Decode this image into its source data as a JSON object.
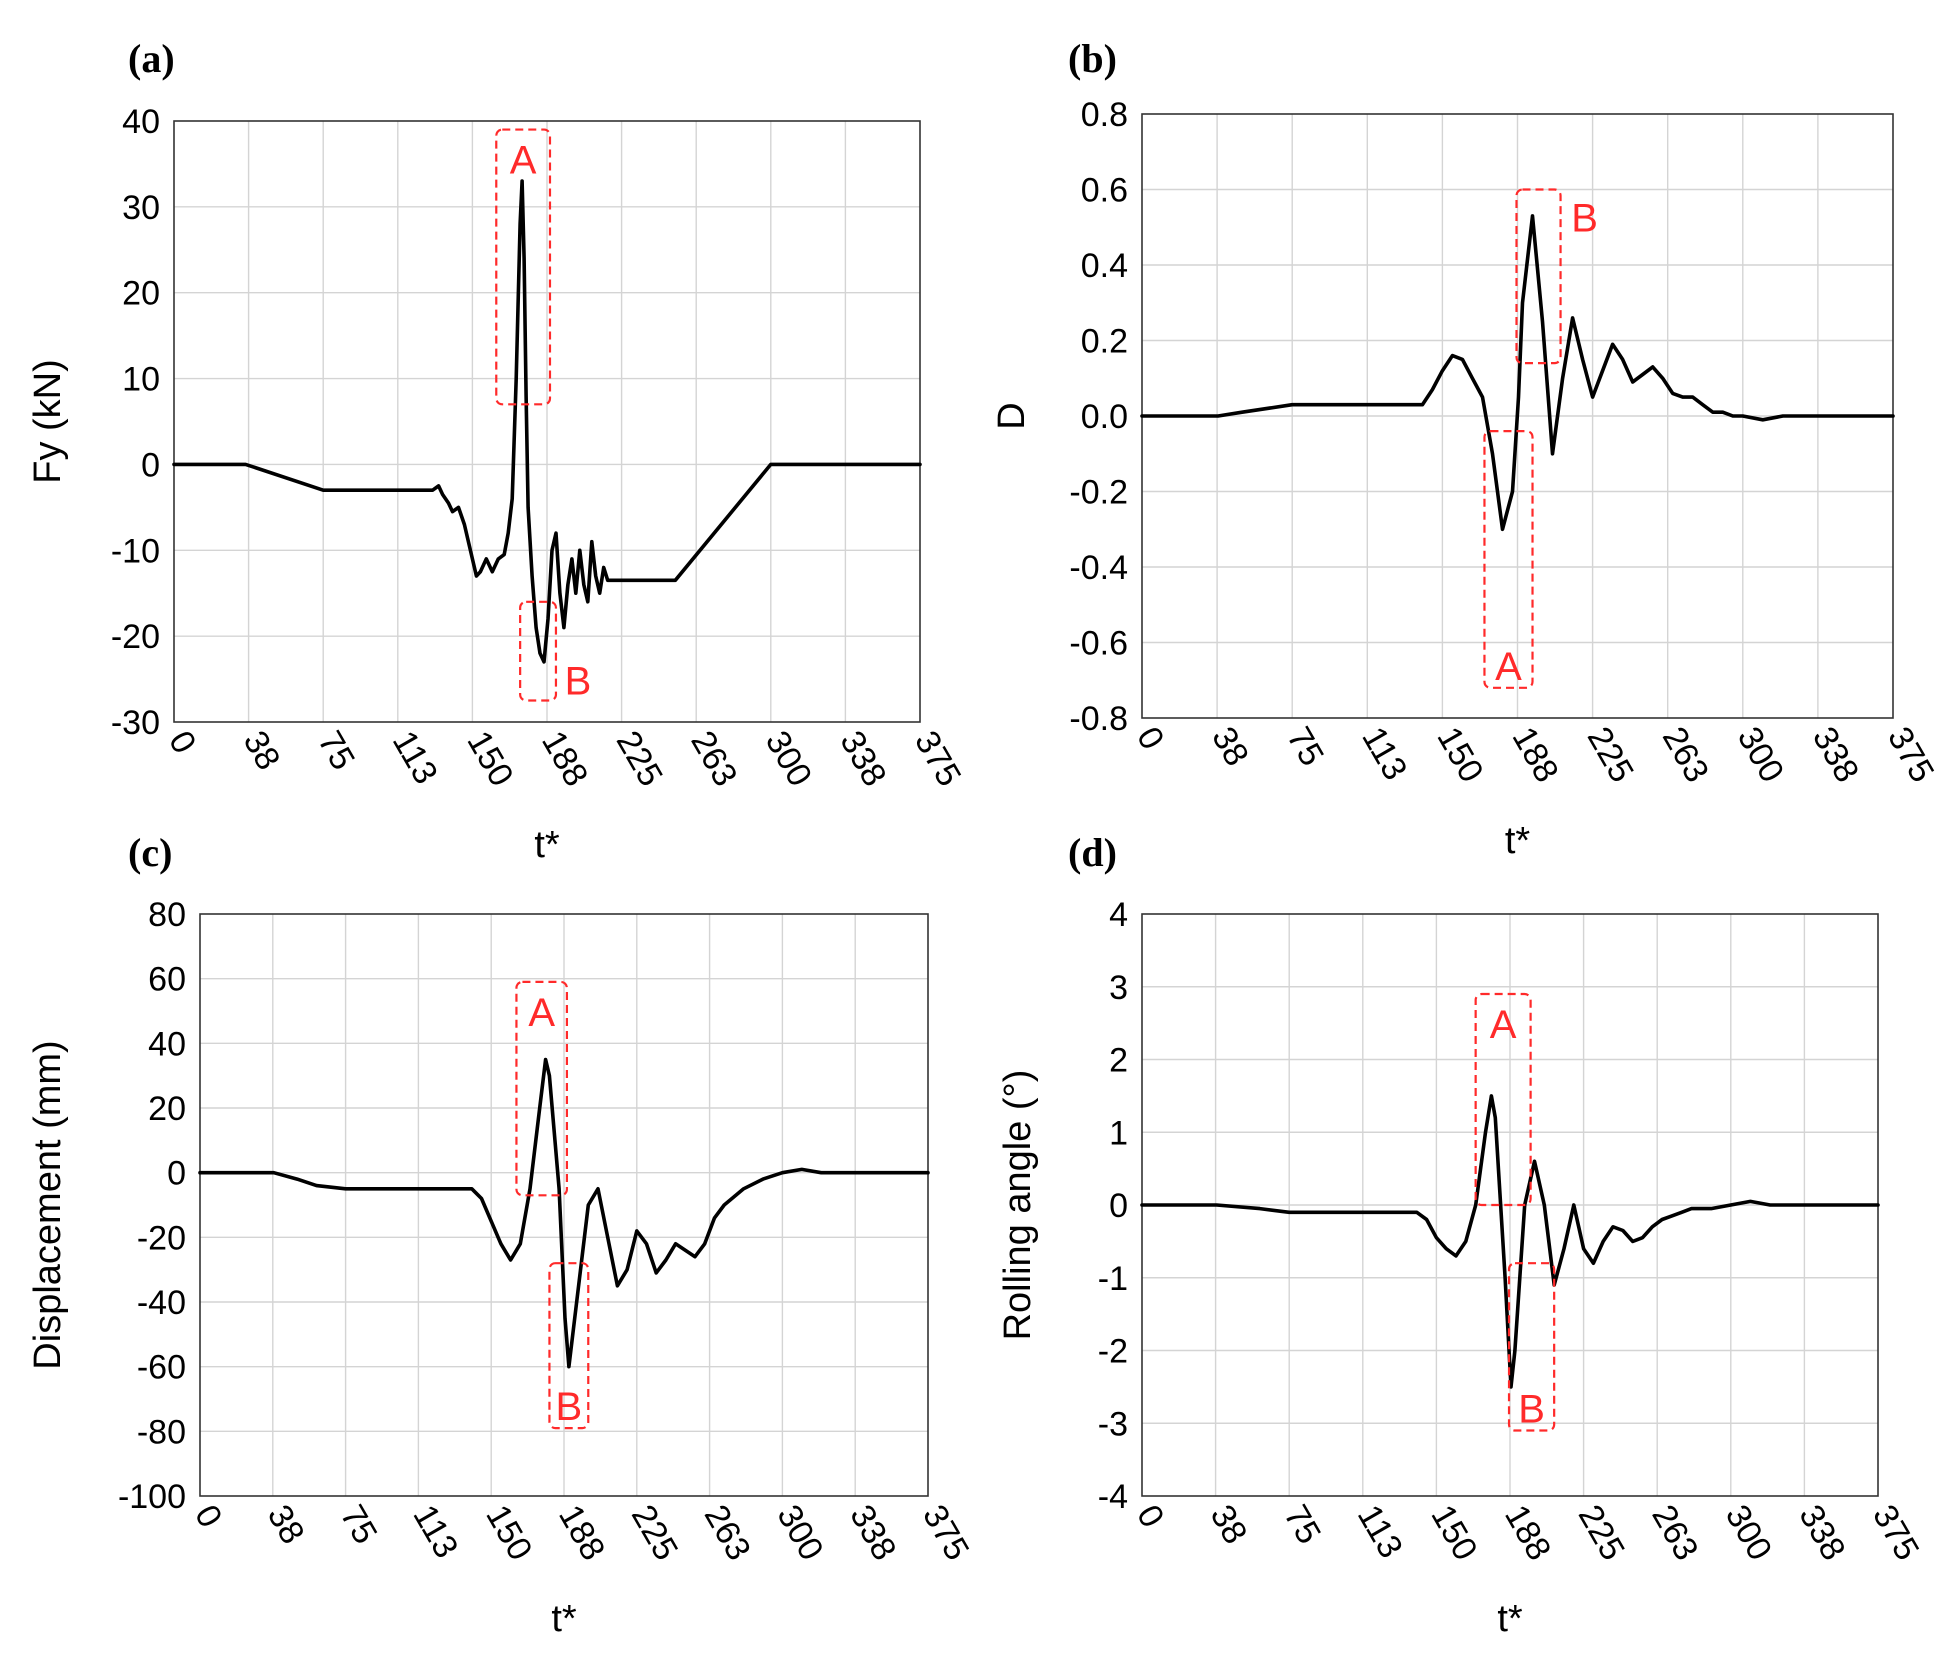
{
  "chart_data": [
    {
      "type": "line",
      "label": "(a)",
      "xlabel": "t*",
      "ylabel": "Fy (kN)",
      "xlim": [
        0,
        375
      ],
      "ylim": [
        -30,
        40
      ],
      "xticks": [
        "0",
        "38",
        "75",
        "113",
        "150",
        "188",
        "225",
        "263",
        "300",
        "338",
        "375"
      ],
      "yticks": [
        "40",
        "30",
        "20",
        "10",
        "0",
        "-10",
        "-20",
        "-30"
      ],
      "annotations": [
        {
          "text": "A",
          "x0": 162,
          "x1": 189,
          "y0": 7,
          "y1": 39
        },
        {
          "text": "B",
          "x0": 174,
          "x1": 192,
          "y0": -27.5,
          "y1": -16
        }
      ],
      "series": [
        {
          "name": "Fy",
          "x": [
            0,
            36,
            75,
            130,
            133,
            135,
            138,
            140,
            143,
            146,
            150,
            152,
            154,
            157,
            160,
            163,
            166,
            168,
            170,
            172,
            174,
            175,
            176,
            177,
            178,
            180,
            182,
            184,
            186,
            188,
            190,
            192,
            194,
            196,
            198,
            200,
            202,
            204,
            206,
            208,
            210,
            212,
            214,
            216,
            218,
            252,
            300,
            375
          ],
          "y": [
            0,
            0,
            -3,
            -3,
            -2.5,
            -3.5,
            -4.5,
            -5.5,
            -5,
            -7,
            -11,
            -13,
            -12.5,
            -11,
            -12.5,
            -11,
            -10.5,
            -8,
            -4,
            10,
            28,
            33,
            24,
            8,
            -5,
            -13,
            -19,
            -22,
            -23,
            -18,
            -10,
            -8,
            -15,
            -19,
            -14,
            -11,
            -15,
            -10,
            -14,
            -16,
            -9,
            -13,
            -15,
            -12,
            -13.5,
            -13.5,
            0,
            0
          ]
        }
      ]
    },
    {
      "type": "line",
      "label": "(b)",
      "xlabel": "t*",
      "ylabel": "D",
      "xlim": [
        0,
        375
      ],
      "ylim": [
        -0.8,
        0.8
      ],
      "xticks": [
        "0",
        "38",
        "75",
        "113",
        "150",
        "188",
        "225",
        "263",
        "300",
        "338",
        "375"
      ],
      "yticks": [
        "0.8",
        "0.6",
        "0.4",
        "0.2",
        "0.0",
        "-0.2",
        "-0.4",
        "-0.6",
        "-0.8"
      ],
      "annotations": [
        {
          "text": "B",
          "x0": 187,
          "x1": 209,
          "y0": 0.14,
          "y1": 0.6
        },
        {
          "text": "A",
          "x0": 171,
          "x1": 195,
          "y0": -0.72,
          "y1": -0.04
        }
      ],
      "series": [
        {
          "name": "D",
          "x": [
            0,
            38,
            50,
            75,
            100,
            125,
            140,
            145,
            150,
            155,
            160,
            165,
            170,
            175,
            180,
            185,
            188,
            190,
            195,
            200,
            205,
            210,
            215,
            220,
            225,
            230,
            235,
            240,
            245,
            250,
            255,
            260,
            265,
            270,
            275,
            280,
            285,
            290,
            295,
            300,
            310,
            320,
            330,
            340,
            350,
            375
          ],
          "y": [
            0,
            0,
            0.01,
            0.03,
            0.03,
            0.03,
            0.03,
            0.07,
            0.12,
            0.16,
            0.15,
            0.1,
            0.05,
            -0.1,
            -0.3,
            -0.2,
            0.05,
            0.3,
            0.53,
            0.25,
            -0.1,
            0.1,
            0.26,
            0.15,
            0.05,
            0.12,
            0.19,
            0.15,
            0.09,
            0.11,
            0.13,
            0.1,
            0.06,
            0.05,
            0.05,
            0.03,
            0.01,
            0.01,
            0.0,
            0.0,
            -0.01,
            0.0,
            0.0,
            0.0,
            0.0,
            0.0
          ]
        }
      ]
    },
    {
      "type": "line",
      "label": "(c)",
      "xlabel": "t*",
      "ylabel": "Displacement (mm)",
      "xlim": [
        0,
        375
      ],
      "ylim": [
        -100,
        80
      ],
      "xticks": [
        "0",
        "38",
        "75",
        "113",
        "150",
        "188",
        "225",
        "263",
        "300",
        "338",
        "375"
      ],
      "yticks": [
        "80",
        "60",
        "40",
        "20",
        "0",
        "-20",
        "-40",
        "-60",
        "-80",
        "-100"
      ],
      "annotations": [
        {
          "text": "A",
          "x0": 163,
          "x1": 189,
          "y0": -7,
          "y1": 59
        },
        {
          "text": "B",
          "x0": 180,
          "x1": 200,
          "y0": -79,
          "y1": -28
        }
      ],
      "series": [
        {
          "name": "Displacement",
          "x": [
            0,
            38,
            50,
            60,
            75,
            100,
            130,
            140,
            145,
            150,
            155,
            160,
            165,
            170,
            175,
            178,
            180,
            185,
            188,
            190,
            195,
            200,
            205,
            210,
            215,
            220,
            225,
            230,
            235,
            240,
            245,
            250,
            255,
            260,
            265,
            270,
            280,
            290,
            300,
            310,
            320,
            330,
            340,
            375
          ],
          "y": [
            0,
            0,
            -2,
            -4,
            -5,
            -5,
            -5,
            -5,
            -8,
            -15,
            -22,
            -27,
            -22,
            -5,
            20,
            35,
            30,
            -5,
            -45,
            -60,
            -35,
            -10,
            -5,
            -20,
            -35,
            -30,
            -18,
            -22,
            -31,
            -27,
            -22,
            -24,
            -26,
            -22,
            -14,
            -10,
            -5,
            -2,
            0,
            1,
            0,
            0,
            0,
            0
          ]
        }
      ]
    },
    {
      "type": "line",
      "label": "(d)",
      "xlabel": "t*",
      "ylabel": "Rolling angle (°)",
      "xlim": [
        0,
        375
      ],
      "ylim": [
        -4,
        4
      ],
      "xticks": [
        "0",
        "38",
        "75",
        "113",
        "150",
        "188",
        "225",
        "263",
        "300",
        "338",
        "375"
      ],
      "yticks": [
        "4",
        "3",
        "2",
        "1",
        "0",
        "-1",
        "-2",
        "-3",
        "-4"
      ],
      "annotations": [
        {
          "text": "A",
          "x0": 170,
          "x1": 198,
          "y0": 0,
          "y1": 2.9
        },
        {
          "text": "B",
          "x0": 187,
          "x1": 210,
          "y0": -3.1,
          "y1": -0.8
        }
      ],
      "series": [
        {
          "name": "Rolling angle",
          "x": [
            0,
            38,
            60,
            75,
            100,
            125,
            140,
            145,
            150,
            155,
            160,
            165,
            170,
            175,
            178,
            180,
            185,
            188,
            190,
            195,
            200,
            205,
            210,
            215,
            220,
            225,
            230,
            235,
            240,
            245,
            250,
            255,
            260,
            265,
            270,
            275,
            280,
            290,
            300,
            310,
            320,
            330,
            340,
            375
          ],
          "y": [
            0,
            0,
            -0.05,
            -0.1,
            -0.1,
            -0.1,
            -0.1,
            -0.2,
            -0.45,
            -0.6,
            -0.7,
            -0.5,
            0,
            1.0,
            1.5,
            1.2,
            -1.0,
            -2.5,
            -2.0,
            0.0,
            0.6,
            0.0,
            -1.1,
            -0.6,
            0.0,
            -0.6,
            -0.8,
            -0.5,
            -0.3,
            -0.35,
            -0.5,
            -0.45,
            -0.3,
            -0.2,
            -0.15,
            -0.1,
            -0.05,
            -0.05,
            0.0,
            0.05,
            0.0,
            0.0,
            0.0,
            0.0
          ]
        }
      ]
    }
  ]
}
